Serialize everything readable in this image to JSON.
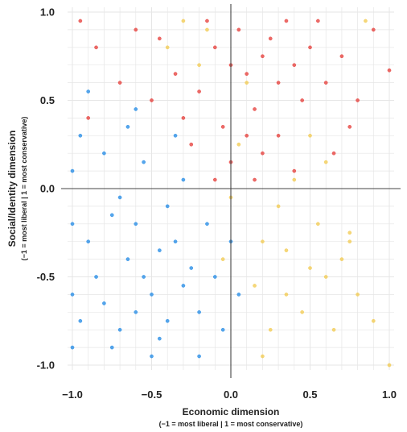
{
  "chart_data": {
    "type": "scatter",
    "title": "",
    "xlabel": "Economic dimension",
    "xlabel_note": "(−1 = most liberal | 1 = most conservative)",
    "ylabel": "Social/Identity dimension",
    "ylabel_note": "(−1 = most liberal | 1 = most conservative)",
    "xlim": [
      -1.0,
      1.0
    ],
    "ylim": [
      -1.0,
      1.0
    ],
    "x_ticks": [
      -1.0,
      -0.5,
      0.0,
      0.5,
      1.0
    ],
    "x_tick_labels": [
      "−1.0",
      "−0.5",
      "0.0",
      "0.5",
      "1.0"
    ],
    "y_ticks": [
      1.0,
      0.5,
      0.0,
      -0.5,
      -1.0
    ],
    "y_tick_labels": [
      "1.0",
      "0.5",
      "0.0",
      "-0.5",
      "-1.0"
    ],
    "grid": true,
    "colors": {
      "red": "#e53935",
      "blue": "#1e88e5",
      "yellow": "#f2c94c",
      "zero_line": "#444444",
      "grid": "#e6e6e6"
    },
    "series": [
      {
        "color": "#e53935",
        "points": [
          [
            0.0,
            0.7
          ],
          [
            0.1,
            0.65
          ],
          [
            0.2,
            0.75
          ],
          [
            -0.1,
            0.8
          ],
          [
            0.3,
            0.6
          ],
          [
            -0.2,
            0.55
          ],
          [
            0.05,
            0.9
          ],
          [
            0.15,
            0.45
          ],
          [
            0.25,
            0.85
          ],
          [
            -0.05,
            0.35
          ],
          [
            0.4,
            0.7
          ],
          [
            -0.35,
            0.65
          ],
          [
            0.1,
            0.3
          ],
          [
            0.35,
            0.95
          ],
          [
            -0.15,
            0.95
          ],
          [
            0.5,
            0.8
          ],
          [
            -0.3,
            0.4
          ],
          [
            0.2,
            0.2
          ],
          [
            0.45,
            0.5
          ],
          [
            -0.45,
            0.85
          ],
          [
            0.6,
            0.6
          ],
          [
            -0.5,
            0.5
          ],
          [
            0.0,
            0.15
          ],
          [
            0.3,
            0.3
          ],
          [
            -0.25,
            0.25
          ],
          [
            0.55,
            0.95
          ],
          [
            0.7,
            0.75
          ],
          [
            -0.6,
            0.9
          ],
          [
            -0.7,
            0.6
          ],
          [
            0.8,
            0.5
          ],
          [
            -0.85,
            0.8
          ],
          [
            -0.9,
            0.4
          ],
          [
            0.65,
            0.2
          ],
          [
            0.15,
            0.05
          ],
          [
            0.4,
            0.1
          ],
          [
            -0.1,
            0.05
          ],
          [
            0.9,
            0.9
          ],
          [
            -0.95,
            0.95
          ],
          [
            1.0,
            0.67
          ],
          [
            0.75,
            0.35
          ]
        ]
      },
      {
        "color": "#1e88e5",
        "points": [
          [
            -0.6,
            -0.7
          ],
          [
            -0.5,
            -0.6
          ],
          [
            -0.7,
            -0.8
          ],
          [
            -0.55,
            -0.5
          ],
          [
            -0.4,
            -0.75
          ],
          [
            -0.65,
            -0.4
          ],
          [
            -0.8,
            -0.65
          ],
          [
            -0.3,
            -0.55
          ],
          [
            -0.45,
            -0.85
          ],
          [
            -0.75,
            -0.9
          ],
          [
            -0.9,
            -0.3
          ],
          [
            -0.35,
            -0.3
          ],
          [
            -0.2,
            -0.7
          ],
          [
            -0.6,
            -0.2
          ],
          [
            -0.85,
            -0.5
          ],
          [
            -0.5,
            -0.95
          ],
          [
            -0.25,
            -0.45
          ],
          [
            -0.7,
            -0.05
          ],
          [
            -0.4,
            -0.1
          ],
          [
            -0.15,
            -0.2
          ],
          [
            -0.95,
            -0.75
          ],
          [
            -1.0,
            -0.6
          ],
          [
            -1.0,
            -0.2
          ],
          [
            -1.0,
            -0.9
          ],
          [
            -0.1,
            -0.5
          ],
          [
            -0.55,
            0.15
          ],
          [
            -0.8,
            0.2
          ],
          [
            -0.3,
            0.05
          ],
          [
            -0.65,
            0.35
          ],
          [
            -0.9,
            0.55
          ],
          [
            -0.05,
            -0.8
          ],
          [
            0.0,
            -0.3
          ],
          [
            -0.2,
            -0.95
          ],
          [
            -0.75,
            -0.15
          ],
          [
            -0.45,
            -0.35
          ],
          [
            -0.35,
            0.3
          ],
          [
            -0.6,
            0.45
          ],
          [
            -1.0,
            0.1
          ],
          [
            -0.95,
            0.3
          ],
          [
            0.05,
            -0.6
          ]
        ]
      },
      {
        "color": "#f2c94c",
        "points": [
          [
            0.2,
            -0.3
          ],
          [
            0.35,
            -0.6
          ],
          [
            0.5,
            -0.45
          ],
          [
            0.45,
            -0.7
          ],
          [
            0.6,
            -0.5
          ],
          [
            0.7,
            -0.4
          ],
          [
            0.25,
            -0.8
          ],
          [
            0.15,
            -0.55
          ],
          [
            0.55,
            -0.2
          ],
          [
            0.3,
            -0.1
          ],
          [
            -0.3,
            0.95
          ],
          [
            -0.15,
            0.9
          ],
          [
            0.0,
            -0.05
          ],
          [
            0.65,
            -0.8
          ],
          [
            0.75,
            -0.3
          ],
          [
            0.4,
            0.05
          ],
          [
            -0.2,
            0.7
          ],
          [
            0.1,
            0.6
          ],
          [
            0.8,
            -0.6
          ],
          [
            0.2,
            -0.95
          ],
          [
            0.05,
            0.25
          ],
          [
            -0.05,
            -0.4
          ],
          [
            0.6,
            0.15
          ],
          [
            0.75,
            -0.25
          ],
          [
            0.5,
            0.3
          ],
          [
            0.85,
            0.95
          ],
          [
            0.35,
            -0.35
          ],
          [
            -0.4,
            0.8
          ],
          [
            0.9,
            -0.75
          ],
          [
            1.0,
            -1.0
          ]
        ]
      }
    ]
  }
}
